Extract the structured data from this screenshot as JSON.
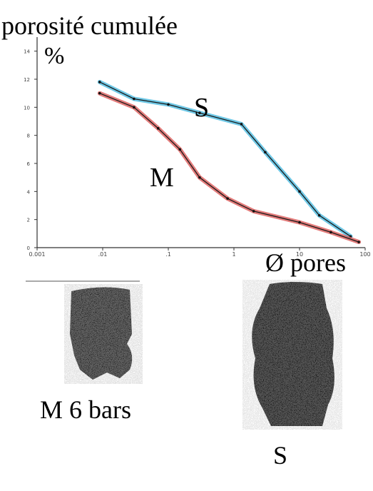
{
  "chart_data": {
    "type": "line",
    "title": "porosité cumulée",
    "ylabel": "%",
    "xlabel": "Ø pores",
    "x_scale": "log",
    "xlim": [
      0.001,
      100
    ],
    "ylim": [
      0,
      15
    ],
    "x_ticks": [
      "0.001",
      ".01",
      ".1",
      "1",
      "10",
      "100"
    ],
    "y_ticks": [
      "0",
      "2",
      "4",
      "6",
      "8",
      "10",
      "12",
      "14"
    ],
    "grid": false,
    "series": [
      {
        "name": "S",
        "color": "#3fb6dd",
        "x": [
          0.009,
          0.03,
          0.1,
          0.3,
          1.3,
          3,
          10,
          20,
          60
        ],
        "y": [
          11.8,
          10.6,
          10.2,
          9.6,
          8.8,
          6.8,
          4.0,
          2.3,
          0.8
        ]
      },
      {
        "name": "M",
        "color": "#d9504f",
        "x": [
          0.009,
          0.03,
          0.07,
          0.15,
          0.3,
          0.8,
          2,
          10,
          30,
          80
        ],
        "y": [
          11.0,
          10.0,
          8.5,
          7.0,
          5.0,
          3.5,
          2.6,
          1.8,
          1.1,
          0.4
        ]
      }
    ]
  },
  "samples": {
    "m_caption": "M 6 bars",
    "s_caption": "S"
  }
}
